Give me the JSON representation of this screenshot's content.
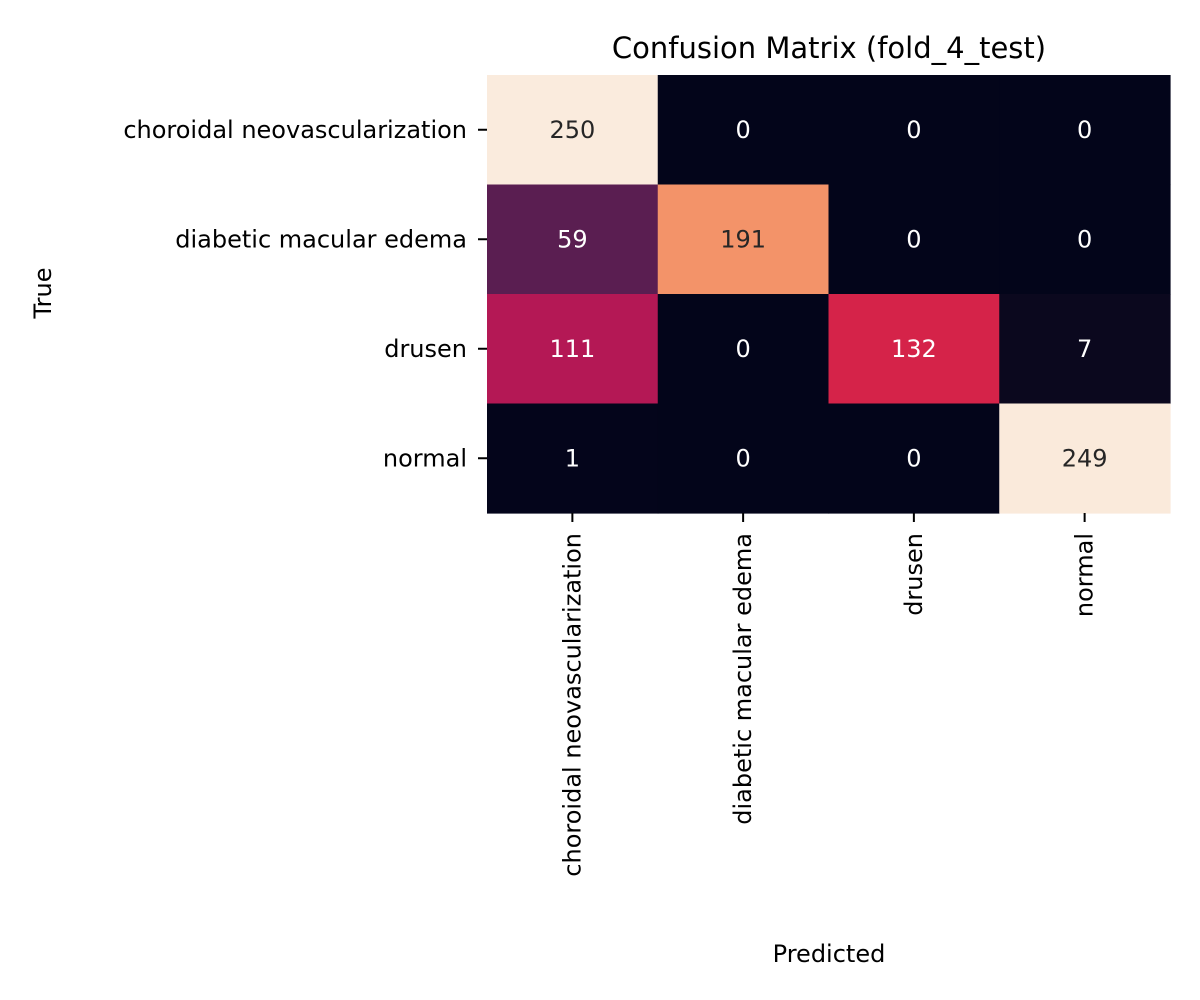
{
  "chart_data": {
    "type": "heatmap",
    "title": "Confusion Matrix (fold_4_test)",
    "xlabel": "Predicted",
    "ylabel": "True",
    "x_categories": [
      "choroidal neovascularization",
      "diabetic macular edema",
      "drusen",
      "normal"
    ],
    "y_categories": [
      "choroidal neovascularization",
      "diabetic macular edema",
      "drusen",
      "normal"
    ],
    "values": [
      [
        250,
        0,
        0,
        0
      ],
      [
        59,
        191,
        0,
        0
      ],
      [
        111,
        0,
        132,
        7
      ],
      [
        1,
        0,
        0,
        249
      ]
    ],
    "value_range": [
      0,
      250
    ],
    "colormap": "rocket",
    "colorbar": false,
    "grid": false
  }
}
